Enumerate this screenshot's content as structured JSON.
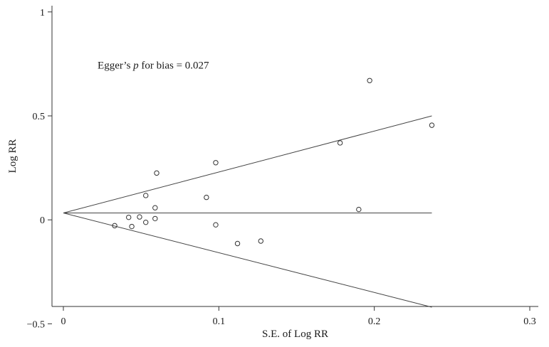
{
  "chart_data": {
    "type": "scatter",
    "title": "",
    "xlabel": "S.E. of Log RR",
    "ylabel": "Log RR",
    "xlim": [
      0,
      0.3
    ],
    "ylim": [
      -0.55,
      1.03
    ],
    "xticks": [
      {
        "value": 0,
        "label": "0"
      },
      {
        "value": 0.1,
        "label": "0.1"
      },
      {
        "value": 0.2,
        "label": "0.2"
      },
      {
        "value": 0.3,
        "label": "0.3"
      }
    ],
    "yticks": [
      {
        "value": -0.5,
        "label": "−0.5"
      },
      {
        "value": 0,
        "label": "0"
      },
      {
        "value": 0.5,
        "label": "0.5"
      },
      {
        "value": 1,
        "label": "1"
      }
    ],
    "grid": false,
    "legend": "none",
    "annotation": {
      "prefix": "Egger’s ",
      "italic": "p",
      "suffix": " for bias = 0.027",
      "x": 0.022,
      "y": 0.745
    },
    "points": [
      {
        "x": 0.033,
        "y": -0.028
      },
      {
        "x": 0.042,
        "y": 0.012
      },
      {
        "x": 0.044,
        "y": -0.032
      },
      {
        "x": 0.049,
        "y": 0.014
      },
      {
        "x": 0.053,
        "y": 0.117
      },
      {
        "x": 0.053,
        "y": -0.012
      },
      {
        "x": 0.059,
        "y": 0.058
      },
      {
        "x": 0.059,
        "y": 0.006
      },
      {
        "x": 0.06,
        "y": 0.225
      },
      {
        "x": 0.092,
        "y": 0.108
      },
      {
        "x": 0.098,
        "y": 0.275
      },
      {
        "x": 0.098,
        "y": -0.024
      },
      {
        "x": 0.112,
        "y": -0.114
      },
      {
        "x": 0.127,
        "y": -0.102
      },
      {
        "x": 0.178,
        "y": 0.37
      },
      {
        "x": 0.19,
        "y": 0.05
      },
      {
        "x": 0.197,
        "y": 0.67
      },
      {
        "x": 0.237,
        "y": 0.455
      }
    ],
    "lines": [
      {
        "name": "",
        "from": {
          "x": 0,
          "y": 0.033
        },
        "to": {
          "x": 0.237,
          "y": 0.5
        }
      },
      {
        "name": "",
        "from": {
          "x": 0,
          "y": 0.033
        },
        "to": {
          "x": 0.237,
          "y": 0.033
        }
      },
      {
        "name": "",
        "from": {
          "x": 0,
          "y": 0.033
        },
        "to": {
          "x": 0.237,
          "y": -0.42
        }
      }
    ],
    "colors": {
      "axis": "#333333",
      "line": "#444444",
      "marker": "#333333",
      "background": "#ffffff"
    }
  }
}
